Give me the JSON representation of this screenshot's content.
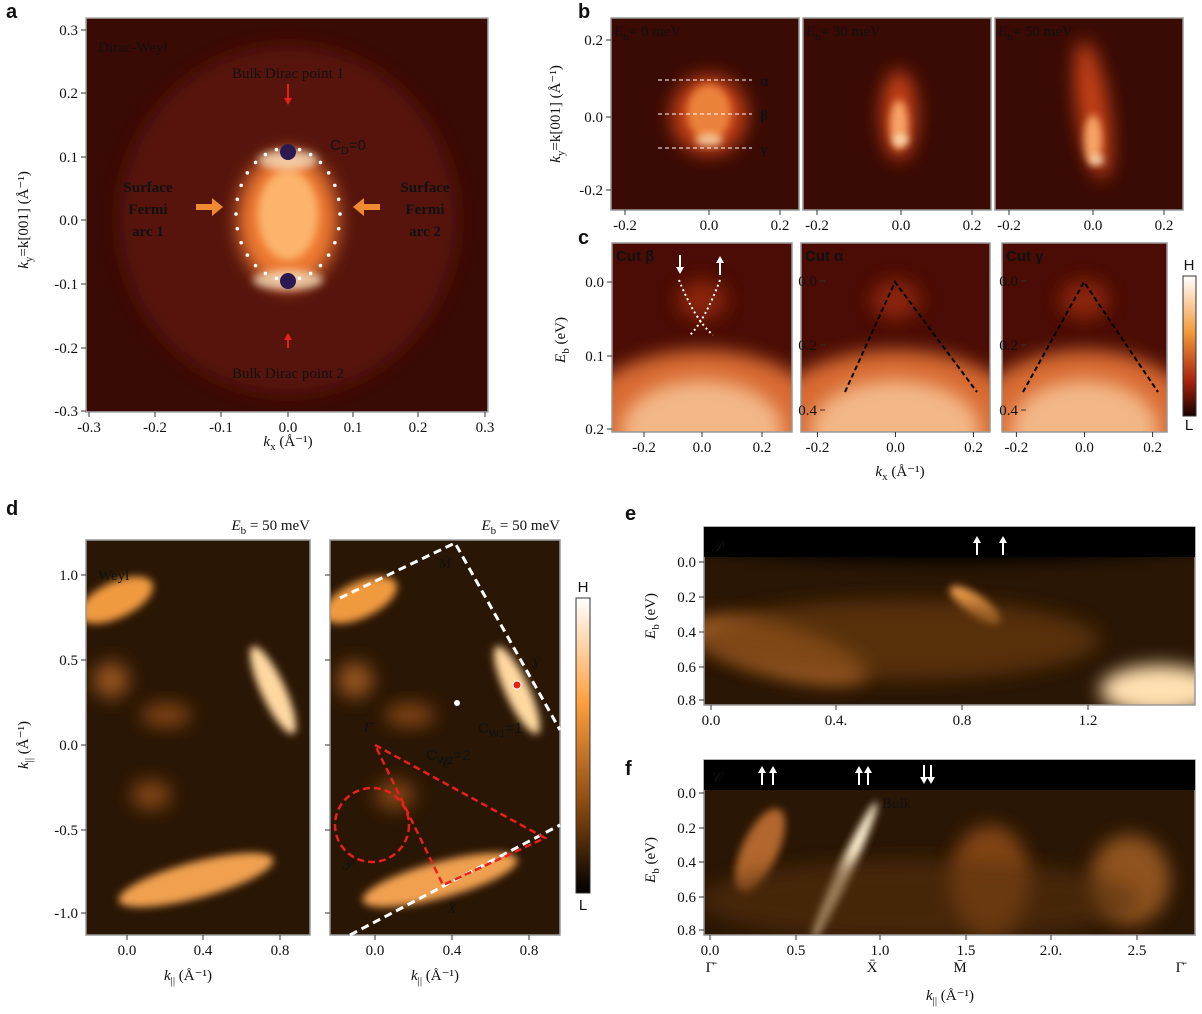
{
  "a": {
    "letter": "a",
    "title": "Dirac-Weyl",
    "xticks": [
      "-0.3",
      "-0.2",
      "-0.1",
      "0.0",
      "0.1",
      "0.2",
      "0.3"
    ],
    "yticks": [
      "0.3",
      "0.2",
      "0.1",
      "0.0",
      "-0.1",
      "-0.2",
      "-0.3"
    ],
    "xlabel": [
      "k",
      "x",
      " (Å⁻¹)"
    ],
    "ylabel": [
      "k",
      "y",
      "=k[001] (Å⁻¹)"
    ],
    "dirac1": "Bulk Dirac point 1",
    "dirac2": "Bulk Dirac point 2",
    "arc1": [
      "Surface",
      "Fermi",
      "arc 1"
    ],
    "arc2": [
      "Surface",
      "Fermi",
      "arc 2"
    ],
    "chern": [
      "C",
      "D",
      "=0"
    ]
  },
  "b": {
    "letter": "b",
    "panels": [
      [
        "E",
        "b",
        "= 0 meV"
      ],
      [
        "E",
        "b",
        "= 30 meV"
      ],
      [
        "E",
        "b",
        "= 50 meV"
      ]
    ],
    "xticks": [
      "-0.2",
      "0.0",
      "0.2"
    ],
    "yticks": [
      "0.2",
      "0.0",
      "-0.2"
    ],
    "ylabel": [
      "k",
      "y",
      "=k[001] (Å⁻¹)"
    ],
    "cuts": [
      "α",
      "β",
      "γ"
    ]
  },
  "c": {
    "letter": "c",
    "panels": [
      "Cut β",
      "Cut α",
      "Cut γ"
    ],
    "xticks": [
      "-0.2",
      "0.0",
      "0.2"
    ],
    "yticks_1": [
      "0.0",
      "0.1",
      "0.2"
    ],
    "yticks_2": [
      "0.0",
      "0.2",
      "0.4"
    ],
    "ylabel": [
      "E",
      "b",
      " (eV)"
    ],
    "xlabel": [
      "k",
      "x",
      " (Å⁻¹)"
    ],
    "colorbar": [
      "H",
      "L"
    ]
  },
  "d": {
    "letter": "d",
    "title": "Weyl",
    "energy": [
      "E",
      "b",
      " = 50 meV"
    ],
    "yticks": [
      "1.0",
      "0.5",
      "0.0",
      "-0.5",
      "-1.0"
    ],
    "xticks": [
      "0.0",
      "0.4",
      "0.8"
    ],
    "xlabel": [
      "k",
      "||",
      "  (Å⁻¹)"
    ],
    "ylabel": [
      "k",
      "||",
      "  (Å⁻¹)"
    ],
    "points": [
      "M̄",
      "Ȳ",
      "Γ̄",
      "X̄"
    ],
    "chern1": [
      "C",
      "W1",
      "=1"
    ],
    "chern2": [
      "C",
      "W2",
      "=2"
    ],
    "contour_c": "𝒞",
    "contour_p": "𝒫",
    "colorbar": [
      "H",
      "L"
    ]
  },
  "e": {
    "letter": "e",
    "contour": "𝒫",
    "xticks": [
      "0.0",
      "0.4.",
      "0.8",
      "1.2"
    ],
    "yticks": [
      "0.0",
      "0.2",
      "0.4",
      "0.6",
      "0.8"
    ],
    "ylabel": [
      "E",
      "b",
      " (eV)"
    ]
  },
  "f": {
    "letter": "f",
    "contour": "𝒞",
    "bulk": "Bulk",
    "xticks": [
      "0.0",
      "0.5",
      "1.0",
      "1.5",
      "2.0.",
      "2.5"
    ],
    "yticks": [
      "0.0",
      "0.2",
      "0.4",
      "0.6",
      "0.8"
    ],
    "points": [
      "Γ̄",
      "X̄",
      "M̄",
      "Γ̄"
    ],
    "ylabel": [
      "E",
      "b",
      " (eV)"
    ],
    "xlabel": [
      "k",
      "||",
      "  (Å⁻¹)"
    ]
  }
}
